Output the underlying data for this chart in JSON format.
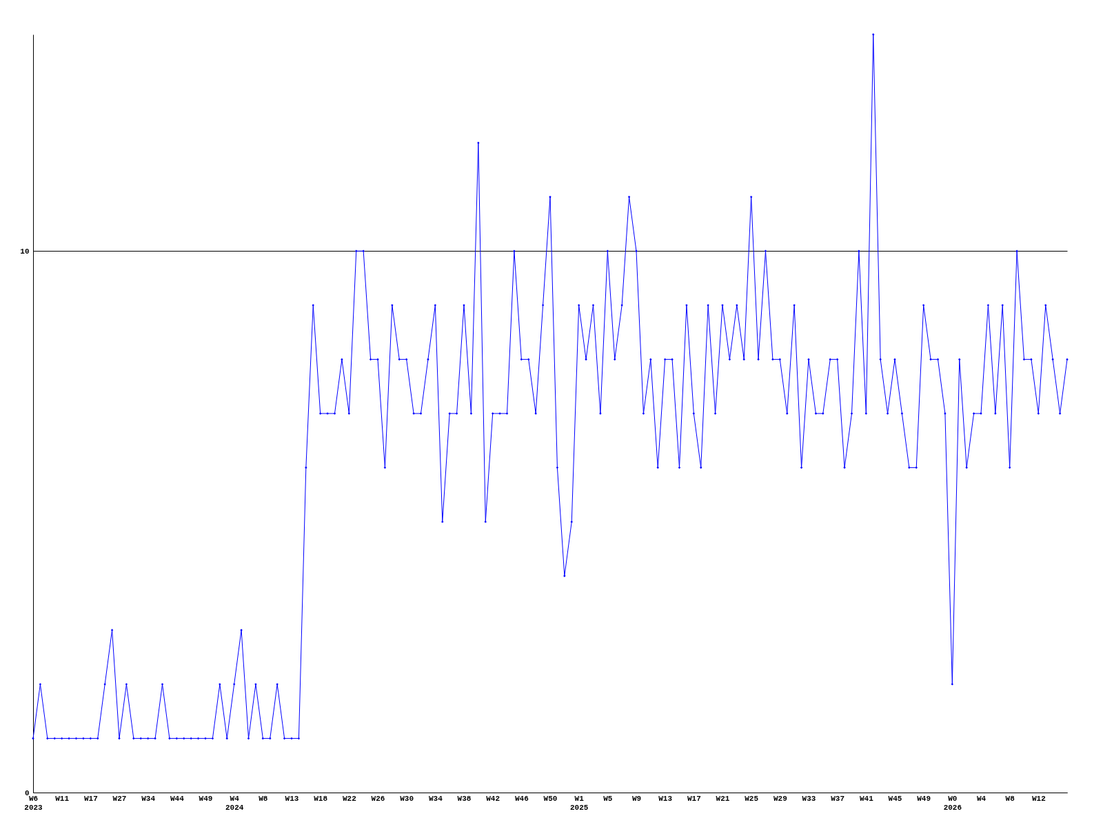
{
  "chart_data": {
    "type": "line",
    "categories": [
      "W6\n2023",
      null,
      null,
      null,
      "W11",
      null,
      null,
      null,
      "W17",
      null,
      null,
      null,
      "W27",
      null,
      null,
      null,
      "W34",
      null,
      null,
      null,
      "W44",
      null,
      null,
      null,
      "W49",
      null,
      null,
      null,
      "W4\n2024",
      null,
      null,
      null,
      "W8",
      null,
      null,
      null,
      "W13",
      null,
      null,
      null,
      "W18",
      null,
      null,
      null,
      "W22",
      null,
      null,
      null,
      "W26",
      null,
      null,
      null,
      "W30",
      null,
      null,
      null,
      "W34",
      null,
      null,
      null,
      "W38",
      null,
      null,
      null,
      "W42",
      null,
      null,
      null,
      "W46",
      null,
      null,
      null,
      "W50",
      null,
      null,
      null,
      "W1\n2025",
      null,
      null,
      null,
      "W5",
      null,
      null,
      null,
      "W9",
      null,
      null,
      null,
      "W13",
      null,
      null,
      null,
      "W17",
      null,
      null,
      null,
      "W21",
      null,
      null,
      null,
      "W25",
      null,
      null,
      null,
      "W29",
      null,
      null,
      null,
      "W33",
      null,
      null,
      null,
      "W37",
      null,
      null,
      null,
      "W41",
      null,
      null,
      null,
      "W45",
      null,
      null,
      null,
      "W49",
      null,
      null,
      null,
      "W0\n2026",
      null,
      null,
      null,
      "W4",
      null,
      null,
      null,
      "W8",
      null,
      null,
      null,
      "W12",
      null,
      null,
      null,
      null
    ],
    "series": [
      {
        "color": "#0000ff",
        "values": [
          1,
          2,
          1,
          1,
          1,
          1,
          1,
          1,
          1,
          1,
          2,
          3,
          1,
          2,
          1,
          1,
          1,
          1,
          2,
          1,
          1,
          1,
          1,
          1,
          1,
          1,
          2,
          1,
          2,
          3,
          1,
          2,
          1,
          1,
          2,
          1,
          1,
          1,
          6,
          9,
          7,
          7,
          7,
          8,
          7,
          10,
          10,
          8,
          8,
          6,
          9,
          8,
          8,
          7,
          7,
          8,
          9,
          5,
          7,
          7,
          9,
          7,
          12,
          5,
          7,
          7,
          7,
          10,
          8,
          8,
          7,
          9,
          11,
          6,
          4,
          5,
          9,
          8,
          9,
          7,
          10,
          8,
          9,
          11,
          10,
          7,
          8,
          6,
          8,
          8,
          6,
          9,
          7,
          6,
          9,
          7,
          9,
          8,
          9,
          8,
          11,
          8,
          10,
          8,
          8,
          7,
          9,
          6,
          8,
          7,
          7,
          8,
          8,
          6,
          7,
          10,
          7,
          14,
          8,
          7,
          8,
          7,
          6,
          6,
          9,
          8,
          8,
          7,
          2,
          8,
          6,
          7,
          7,
          9,
          7,
          9,
          6,
          10,
          8,
          8,
          7,
          9,
          8,
          7,
          8
        ]
      }
    ],
    "ylim": [
      0,
      14
    ],
    "yticks": [
      0,
      10
    ],
    "grid": "y",
    "marker": "diamond",
    "line_style": "solid"
  }
}
